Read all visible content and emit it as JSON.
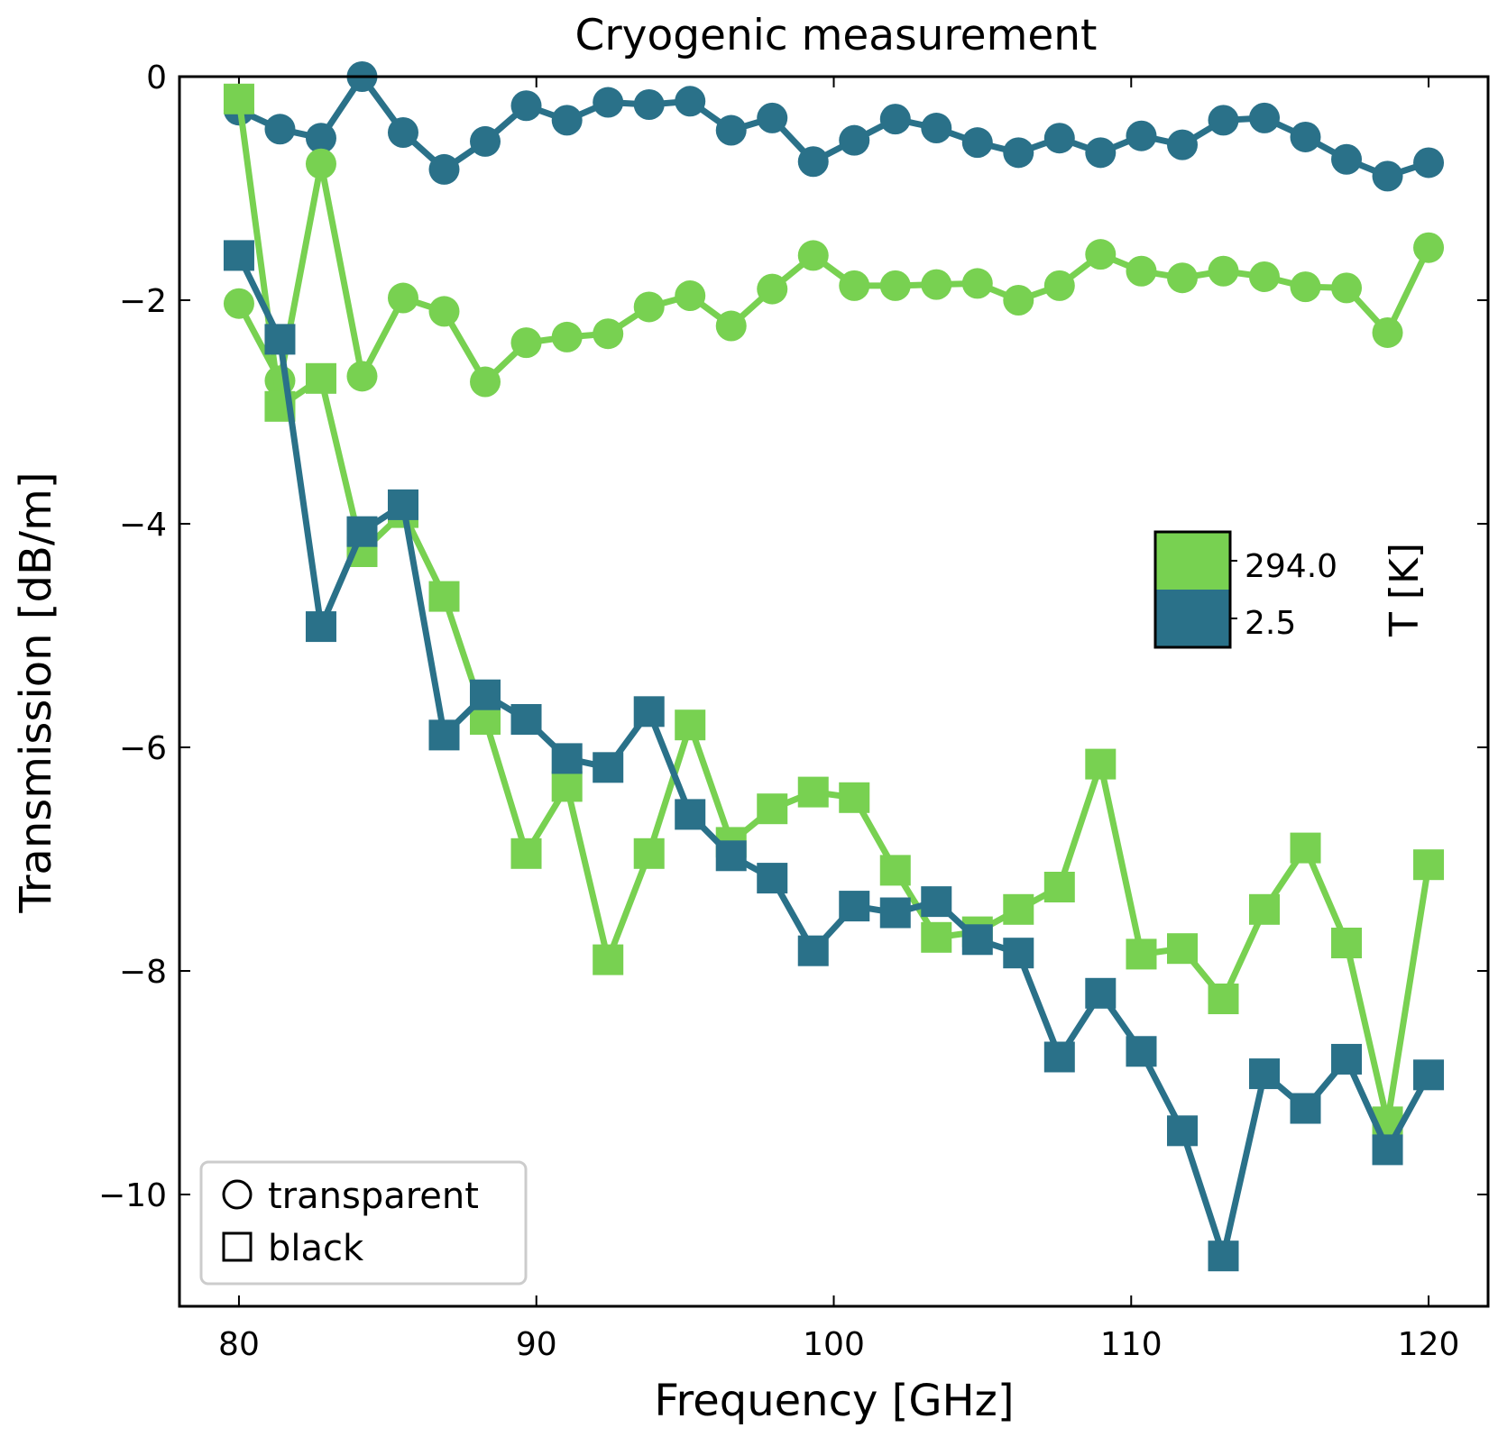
{
  "chart_data": {
    "type": "line",
    "title": "Cryogenic measurement",
    "xlabel": "Frequency [GHz]",
    "ylabel": "Transmission [dB/m]",
    "xlim": [
      78,
      122
    ],
    "ylim": [
      -11,
      0
    ],
    "xticks": [
      80,
      90,
      100,
      110,
      120
    ],
    "xtick_labels": [
      "80",
      "90",
      "100",
      "110",
      "120"
    ],
    "yticks": [
      0,
      -2,
      -4,
      -6,
      -8,
      -10
    ],
    "ytick_labels": [
      "0",
      "−2",
      "−4",
      "−6",
      "−8",
      "−10"
    ],
    "x": [
      80,
      81.38,
      82.76,
      84.14,
      85.52,
      86.9,
      88.28,
      89.66,
      91.03,
      92.41,
      93.79,
      95.17,
      96.55,
      97.93,
      99.31,
      100.69,
      102.07,
      103.45,
      104.83,
      106.21,
      107.59,
      108.97,
      110.34,
      111.72,
      113.1,
      114.48,
      115.86,
      117.24,
      118.62,
      120
    ],
    "series": [
      {
        "name": "transparent, 2.5 K",
        "marker": "circle",
        "temperature": "2.5",
        "color": "#2a7189",
        "values": [
          -0.3,
          -0.47,
          -0.55,
          0.0,
          -0.5,
          -0.83,
          -0.58,
          -0.26,
          -0.39,
          -0.23,
          -0.25,
          -0.22,
          -0.48,
          -0.37,
          -0.76,
          -0.57,
          -0.38,
          -0.46,
          -0.59,
          -0.68,
          -0.55,
          -0.68,
          -0.53,
          -0.61,
          -0.39,
          -0.37,
          -0.54,
          -0.74,
          -0.89,
          -0.77
        ]
      },
      {
        "name": "transparent, 294.0 K",
        "marker": "circle",
        "temperature": "294.0",
        "color": "#78d151",
        "values": [
          -2.03,
          -2.72,
          -0.78,
          -2.68,
          -1.98,
          -2.1,
          -2.73,
          -2.38,
          -2.33,
          -2.3,
          -2.06,
          -1.96,
          -2.23,
          -1.9,
          -1.6,
          -1.87,
          -1.87,
          -1.86,
          -1.85,
          -2.0,
          -1.87,
          -1.59,
          -1.74,
          -1.8,
          -1.74,
          -1.79,
          -1.88,
          -1.89,
          -2.29,
          -1.53
        ]
      },
      {
        "name": "black, 294.0 K",
        "marker": "square",
        "temperature": "294.0",
        "color": "#78d151",
        "values": [
          -0.2,
          -2.95,
          -2.7,
          -4.25,
          -3.9,
          -4.65,
          -5.75,
          -6.95,
          -6.35,
          -7.9,
          -6.95,
          -5.8,
          -6.85,
          -6.55,
          -6.4,
          -6.45,
          -7.1,
          -7.7,
          -7.65,
          -7.45,
          -7.25,
          -6.15,
          -7.85,
          -7.8,
          -8.25,
          -7.45,
          -6.9,
          -7.75,
          -9.35,
          -7.05
        ]
      },
      {
        "name": "black, 2.5 K",
        "marker": "square",
        "temperature": "2.5",
        "color": "#2a7189",
        "values": [
          -1.6,
          -2.35,
          -4.92,
          -4.07,
          -3.83,
          -5.89,
          -5.53,
          -5.75,
          -6.1,
          -6.18,
          -5.68,
          -6.6,
          -6.97,
          -7.17,
          -7.82,
          -7.42,
          -7.48,
          -7.38,
          -7.72,
          -7.84,
          -8.77,
          -8.2,
          -8.72,
          -9.43,
          -10.55,
          -8.92,
          -9.23,
          -8.79,
          -9.6,
          -8.93
        ]
      }
    ],
    "legend": {
      "placement": "lower-left",
      "entries": [
        {
          "label": "transparent",
          "marker": "circle"
        },
        {
          "label": "black",
          "marker": "square"
        }
      ]
    },
    "colorbar": {
      "placement": "right-middle",
      "title": "T [K]",
      "levels": [
        {
          "label": "294.0",
          "color": "#78d151"
        },
        {
          "label": "2.5",
          "color": "#2a7189"
        }
      ]
    }
  }
}
